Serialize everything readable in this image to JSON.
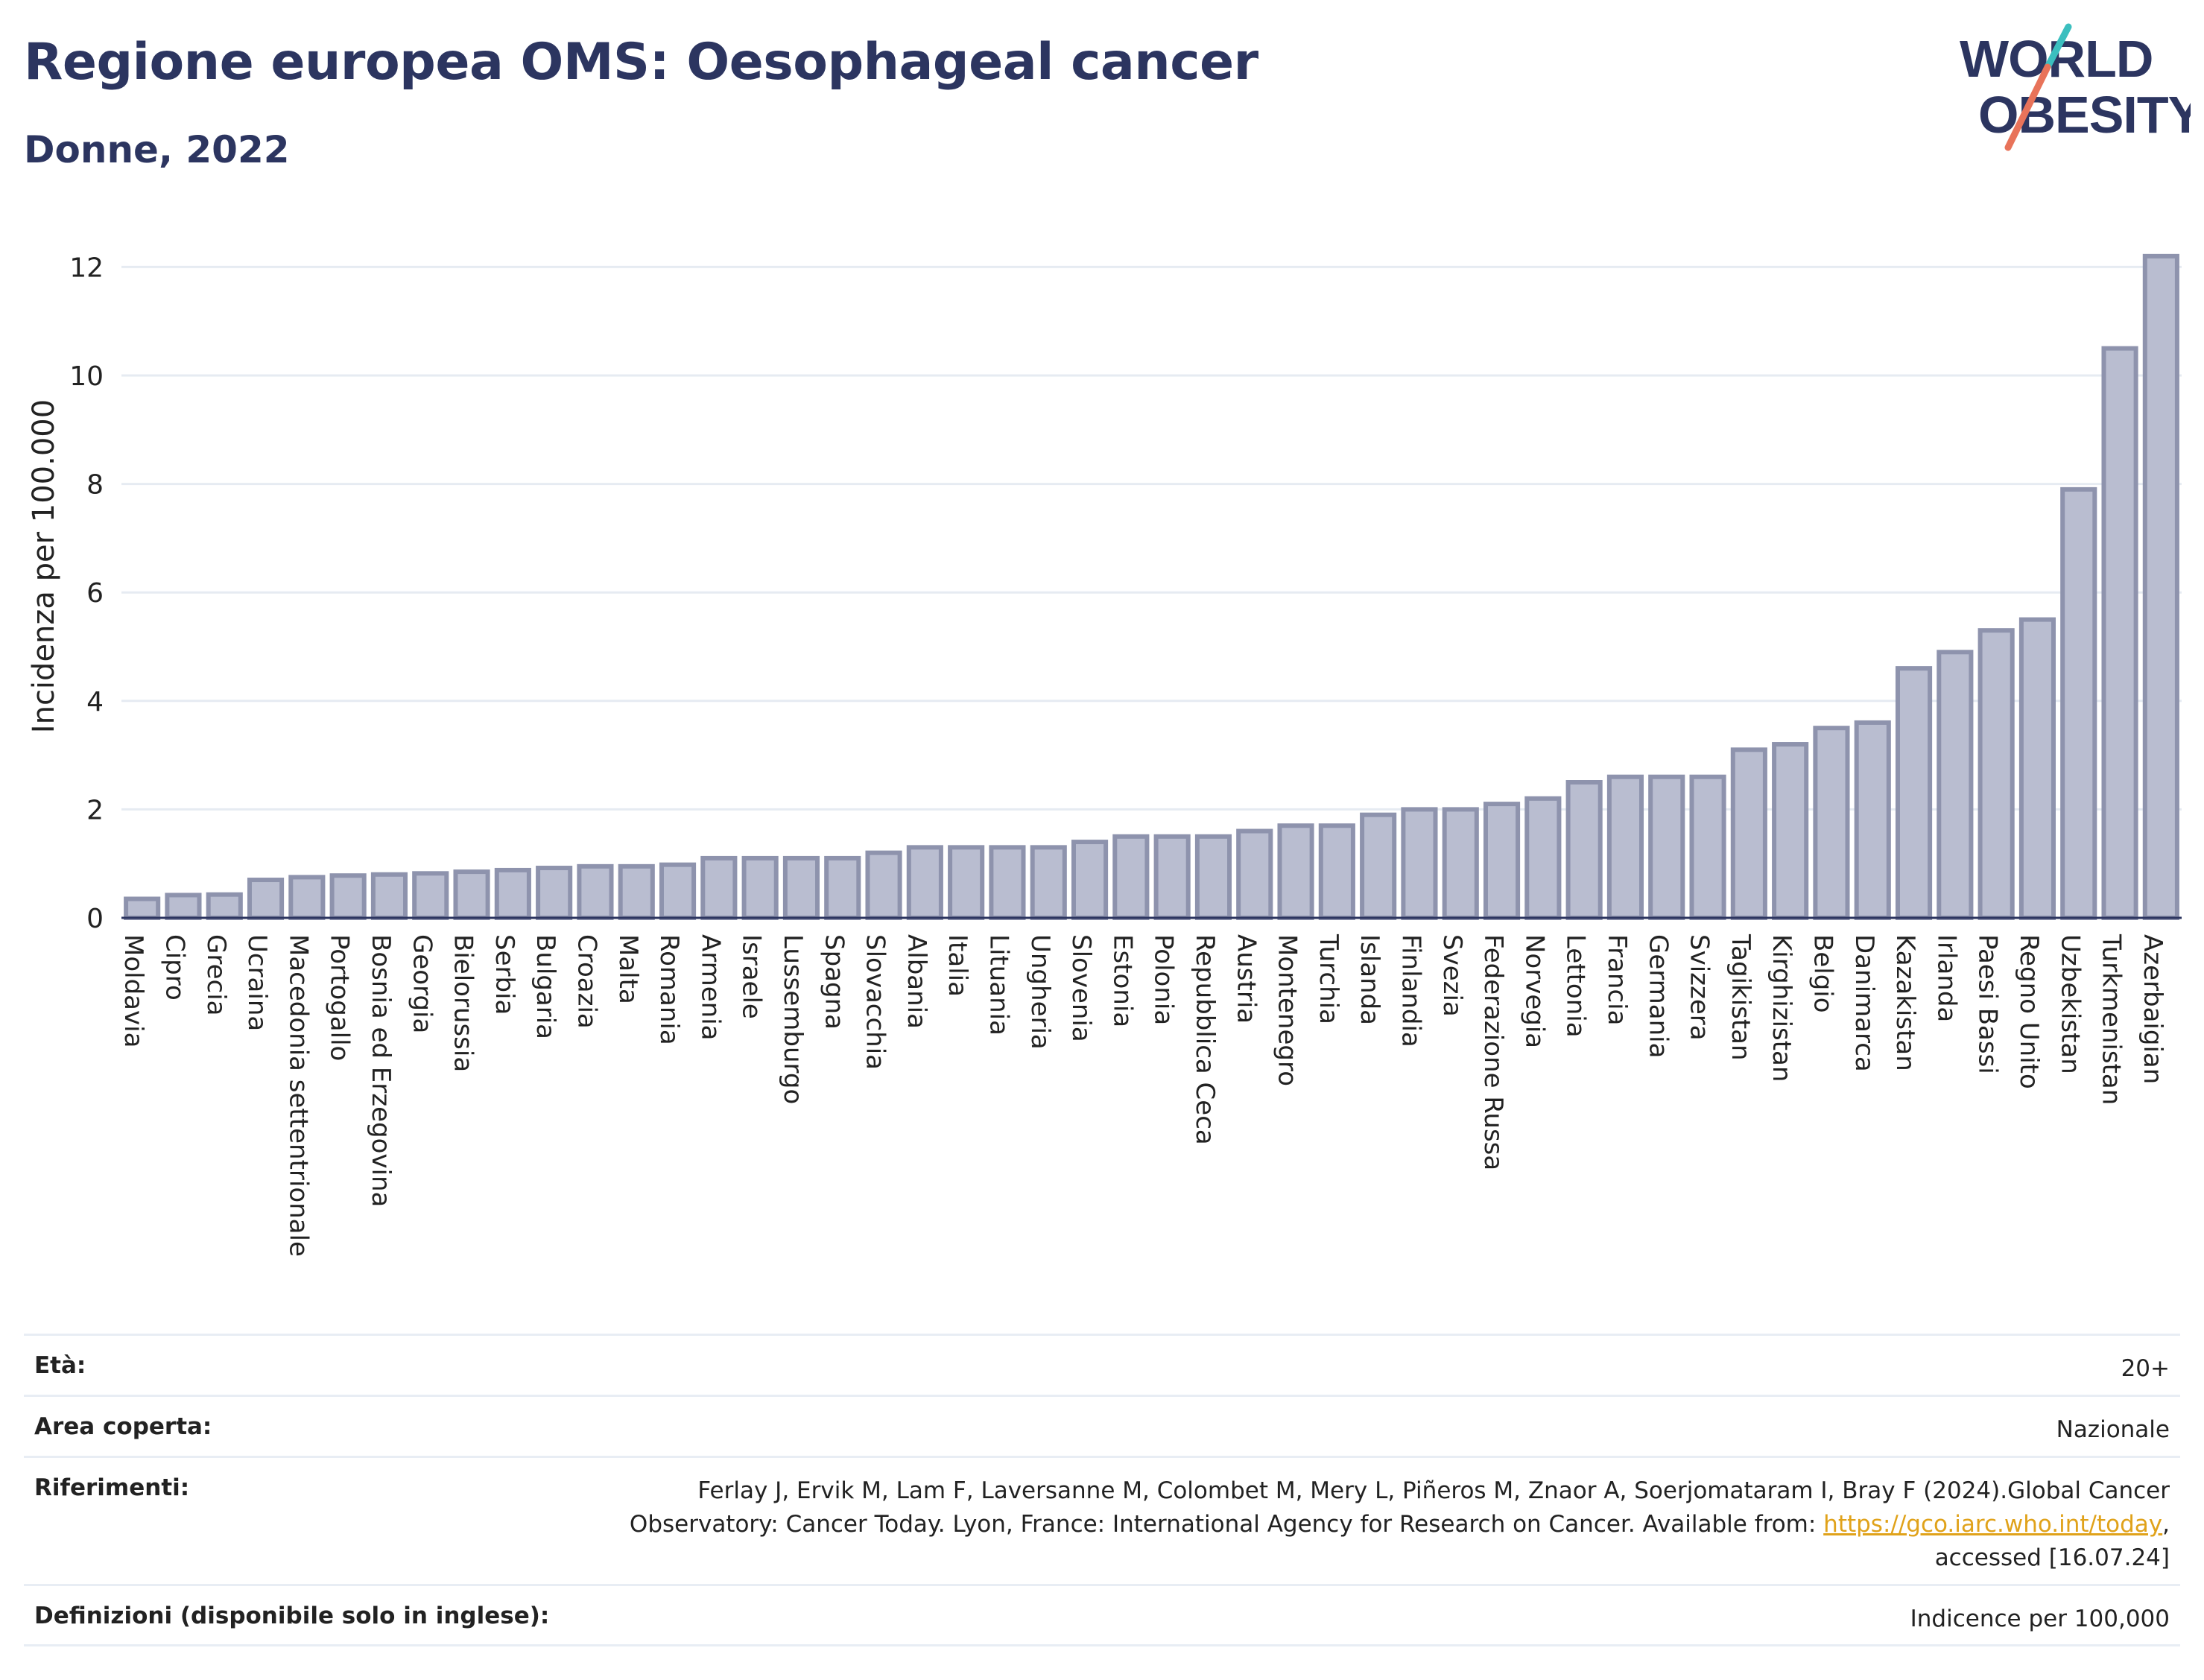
{
  "header": {
    "title": "Regione europea OMS: Oesophageal cancer",
    "subtitle": "Donne, 2022"
  },
  "logo": {
    "line1": "WORLD",
    "line2": "OBESITY",
    "text_color": "#2c3560",
    "slash_top_color": "#3bbfbf",
    "slash_bottom_color": "#e8735a"
  },
  "colors": {
    "bar_fill": "#b9bdd0",
    "bar_stroke": "#8e93ad",
    "grid": "#e6ebf2",
    "axis": "#2c3560"
  },
  "chart_data": {
    "type": "bar",
    "title": "Regione europea OMS: Oesophageal cancer",
    "subtitle": "Donne, 2022",
    "xlabel": "",
    "ylabel": "Incidenza per 100.000",
    "ylim": [
      0,
      12.5
    ],
    "yticks": [
      0,
      2,
      4,
      6,
      8,
      10,
      12
    ],
    "grid": true,
    "categories": [
      "Moldavia",
      "Cipro",
      "Grecia",
      "Ucraina",
      "Macedonia settentrionale",
      "Portogallo",
      "Bosnia ed Erzegovina",
      "Georgia",
      "Bielorussia",
      "Serbia",
      "Bulgaria",
      "Croazia",
      "Malta",
      "Romania",
      "Armenia",
      "Israele",
      "Lussemburgo",
      "Spagna",
      "Slovacchia",
      "Albania",
      "Italia",
      "Lituania",
      "Ungheria",
      "Slovenia",
      "Estonia",
      "Polonia",
      "Repubblica Ceca",
      "Austria",
      "Montenegro",
      "Turchia",
      "Islanda",
      "Finlandia",
      "Svezia",
      "Federazione Russa",
      "Norvegia",
      "Lettonia",
      "Francia",
      "Germania",
      "Svizzera",
      "Tagikistan",
      "Kirghizistan",
      "Belgio",
      "Danimarca",
      "Kazakistan",
      "Irlanda",
      "Paesi Bassi",
      "Regno Unito",
      "Uzbekistan",
      "Turkmenistan",
      "Azerbaigian"
    ],
    "values": [
      0.35,
      0.42,
      0.43,
      0.7,
      0.75,
      0.78,
      0.8,
      0.82,
      0.85,
      0.88,
      0.92,
      0.95,
      0.95,
      0.98,
      1.1,
      1.1,
      1.1,
      1.1,
      1.2,
      1.3,
      1.3,
      1.3,
      1.3,
      1.4,
      1.5,
      1.5,
      1.5,
      1.6,
      1.7,
      1.7,
      1.9,
      2.0,
      2.0,
      2.1,
      2.2,
      2.5,
      2.6,
      2.6,
      2.6,
      3.1,
      3.2,
      3.5,
      3.6,
      4.6,
      4.9,
      5.3,
      5.5,
      7.9,
      10.5,
      12.2
    ]
  },
  "meta": {
    "rows": [
      {
        "label": "Età:",
        "value": "20+"
      },
      {
        "label": "Area coperta:",
        "value": "Nazionale"
      },
      {
        "label": "Riferimenti:",
        "value_line1": "Ferlay J, Ervik M, Lam F, Laversanne M, Colombet M, Mery L, Piñeros M, Znaor A, Soerjomataram I, Bray F (2024).Global Cancer",
        "value_line2_pre": "Observatory: Cancer Today. Lyon, France: International Agency for Research on Cancer. Available from: ",
        "link": "https://gco.iarc.who.int/today",
        "value_line2_post": ",",
        "value_line3": "accessed [16.07.24]"
      },
      {
        "label": "Definizioni (disponibile solo in inglese):",
        "value": "Indicence per 100,000"
      }
    ]
  }
}
